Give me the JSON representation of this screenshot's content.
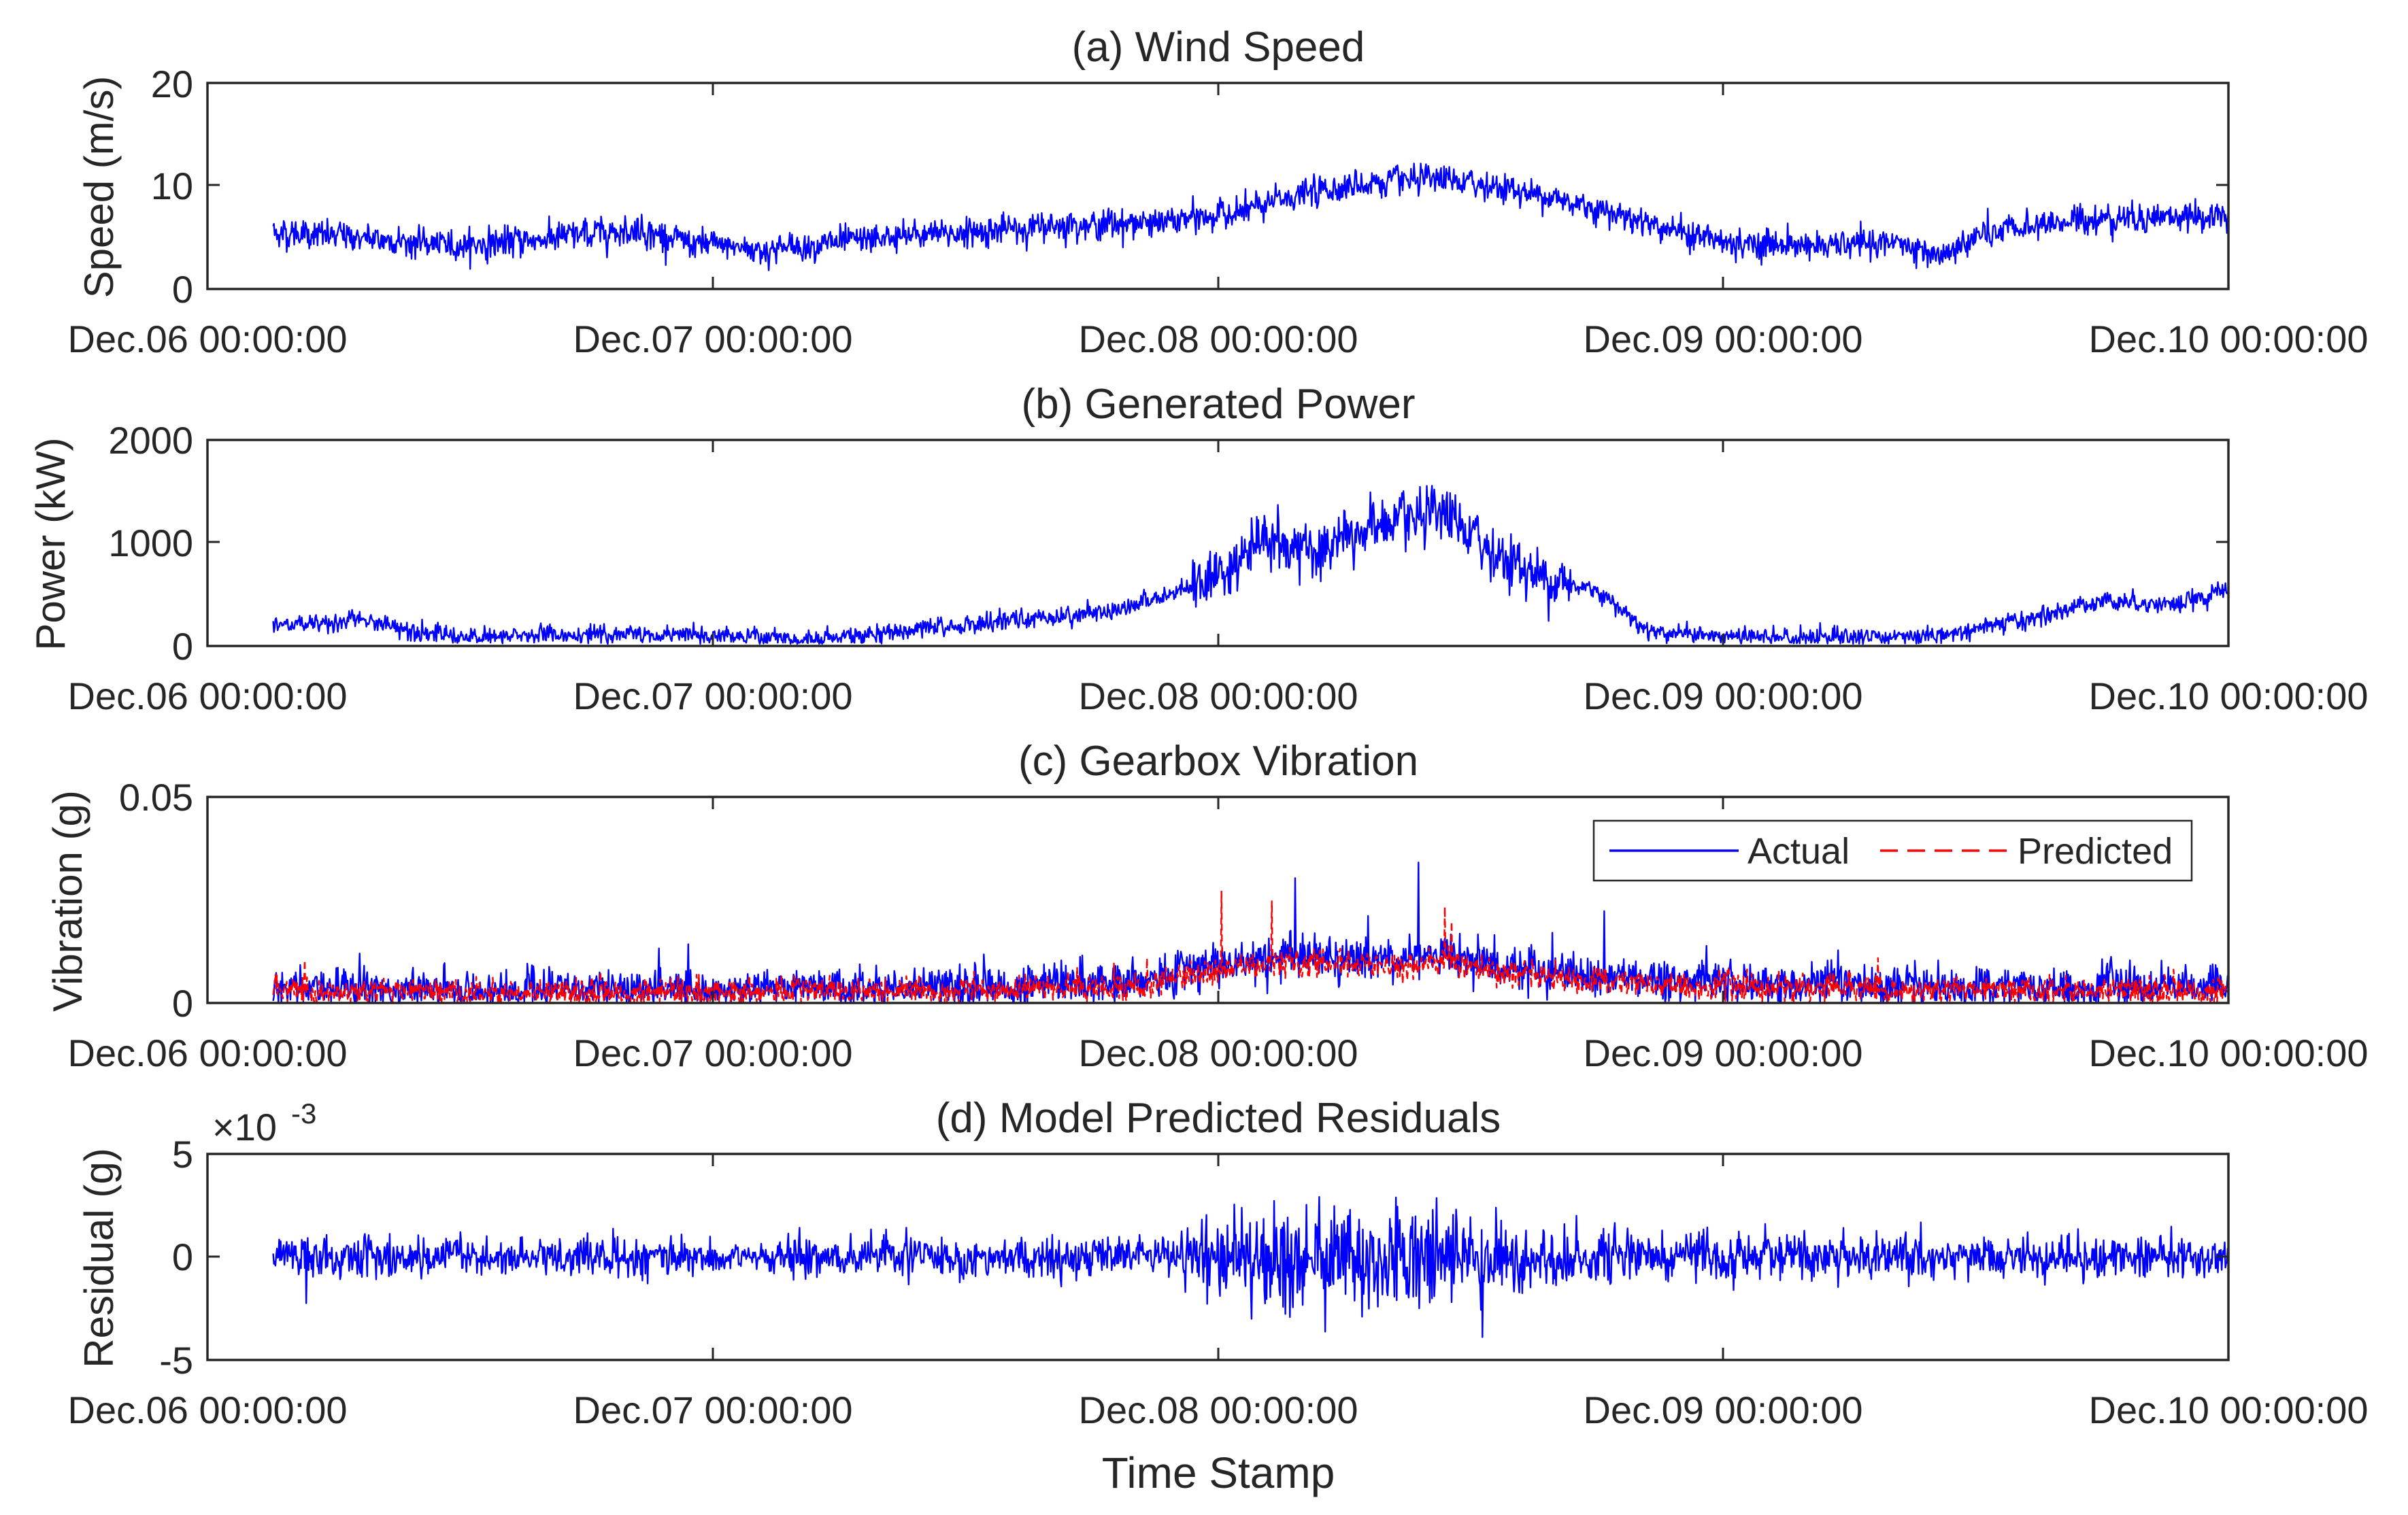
{
  "colors": {
    "actual": "#0000ff",
    "predicted": "#ff0000",
    "axis": "#262626",
    "grid_tick": "#262626",
    "background": "#ffffff"
  },
  "shared": {
    "x_range": [
      0,
      4
    ],
    "x_tick_values": [
      0,
      1,
      2,
      3,
      4
    ],
    "x_tick_labels": [
      "Dec.06 00:00:00",
      "Dec.07 00:00:00",
      "Dec.08 00:00:00",
      "Dec.09 00:00:00",
      "Dec.10 00:00:00"
    ],
    "data_start_day": 0.13,
    "xlabel": "Time Stamp"
  },
  "chart_data": [
    {
      "id": "a",
      "type": "line",
      "title": "(a) Wind Speed",
      "ylabel": "Speed (m/s)",
      "ylim": [
        0,
        20
      ],
      "y_tick_values": [
        0,
        10,
        20
      ],
      "y_tick_labels": [
        "0",
        "10",
        "20"
      ],
      "series": [
        {
          "name": "Actual",
          "color": "#0000ff",
          "style": "solid",
          "noise": 0.9,
          "envelope_x": [
            0.13,
            0.3,
            0.5,
            0.7,
            0.85,
            0.95,
            1.1,
            1.3,
            1.5,
            1.7,
            1.9,
            2.05,
            2.15,
            2.25,
            2.35,
            2.45,
            2.55,
            2.7,
            2.85,
            3.0,
            3.2,
            3.35,
            3.42,
            3.5,
            3.65,
            3.8,
            3.95,
            4.0
          ],
          "envelope_y": [
            5.5,
            5,
            4.2,
            5,
            5.8,
            4.5,
            3.8,
            4.8,
            5.5,
            6.2,
            6.5,
            7.5,
            9,
            10,
            10.5,
            10.5,
            10,
            8.5,
            6.5,
            4.5,
            4.2,
            4.5,
            3,
            5,
            6.5,
            7,
            7,
            7
          ]
        }
      ]
    },
    {
      "id": "b",
      "type": "line",
      "title": "(b) Generated Power",
      "ylabel": "Power (kW)",
      "ylim": [
        0,
        2000
      ],
      "y_tick_values": [
        0,
        1000,
        2000
      ],
      "y_tick_labels": [
        "0",
        "1000",
        "2000"
      ],
      "series": [
        {
          "name": "Actual",
          "color": "#0000ff",
          "style": "solid",
          "noise": 60,
          "envelope_x": [
            0.13,
            0.3,
            0.5,
            0.7,
            0.95,
            1.2,
            1.4,
            1.6,
            1.8,
            1.9,
            2.0,
            2.1,
            2.2,
            2.3,
            2.45,
            2.55,
            2.65,
            2.75,
            2.85,
            3.0,
            3.3,
            3.45,
            3.6,
            3.75,
            3.9,
            4.0
          ],
          "envelope_y": [
            200,
            250,
            80,
            120,
            100,
            60,
            150,
            250,
            350,
            500,
            700,
            1050,
            900,
            1150,
            1250,
            900,
            650,
            550,
            150,
            100,
            80,
            120,
            250,
            450,
            400,
            550
          ]
        }
      ]
    },
    {
      "id": "c",
      "type": "line",
      "title": "(c) Gearbox Vibration",
      "ylabel": "Vibration (g)",
      "ylim": [
        0,
        0.05
      ],
      "y_tick_values": [
        0,
        0.05
      ],
      "y_tick_labels": [
        "0",
        "0.05"
      ],
      "legend": {
        "location": "top-right",
        "entries": [
          "Actual",
          "Predicted"
        ]
      },
      "series": [
        {
          "name": "Actual",
          "color": "#0000ff",
          "style": "solid",
          "noise": 0.003,
          "envelope_x": [
            0.13,
            0.5,
            1.0,
            1.5,
            1.85,
            2.0,
            2.15,
            2.3,
            2.45,
            2.6,
            2.8,
            3.0,
            3.5,
            4.0
          ],
          "envelope_y": [
            0.004,
            0.003,
            0.003,
            0.004,
            0.005,
            0.009,
            0.012,
            0.01,
            0.012,
            0.008,
            0.006,
            0.005,
            0.004,
            0.004
          ]
        },
        {
          "name": "Predicted",
          "color": "#ff0000",
          "style": "dashed",
          "noise": 0.002,
          "envelope_x": [
            0.13,
            0.5,
            1.0,
            1.5,
            1.85,
            2.0,
            2.15,
            2.3,
            2.45,
            2.6,
            2.8,
            3.0,
            3.5,
            4.0
          ],
          "envelope_y": [
            0.003,
            0.0025,
            0.0025,
            0.003,
            0.004,
            0.008,
            0.01,
            0.009,
            0.01,
            0.007,
            0.005,
            0.004,
            0.003,
            0.003
          ]
        }
      ]
    },
    {
      "id": "d",
      "type": "line",
      "title": "(d) Model Predicted Residuals",
      "ylabel": "Residual (g)",
      "ylim": [
        -5,
        5
      ],
      "y_tick_values": [
        -5,
        0,
        5
      ],
      "y_tick_labels": [
        "-5",
        "0",
        "5"
      ],
      "exponent_label": "×10",
      "exponent_value": "-3",
      "series": [
        {
          "name": "Actual",
          "color": "#0000ff",
          "style": "solid",
          "noise": 0.6,
          "envelope_x": [
            0.13,
            1.0,
            1.9,
            2.0,
            2.15,
            2.3,
            2.45,
            2.6,
            2.75,
            3.0,
            4.0
          ],
          "envelope_y": [
            0,
            0,
            0,
            0,
            0,
            0,
            0,
            0,
            0,
            0,
            0
          ],
          "amplitude_x": [
            0.13,
            1.0,
            1.85,
            2.0,
            2.15,
            2.3,
            2.45,
            2.55,
            2.7,
            3.0,
            4.0
          ],
          "amplitude_y": [
            1,
            0.9,
            1,
            2,
            3,
            2.6,
            3,
            2.2,
            1.3,
            1.1,
            1
          ]
        }
      ]
    }
  ]
}
